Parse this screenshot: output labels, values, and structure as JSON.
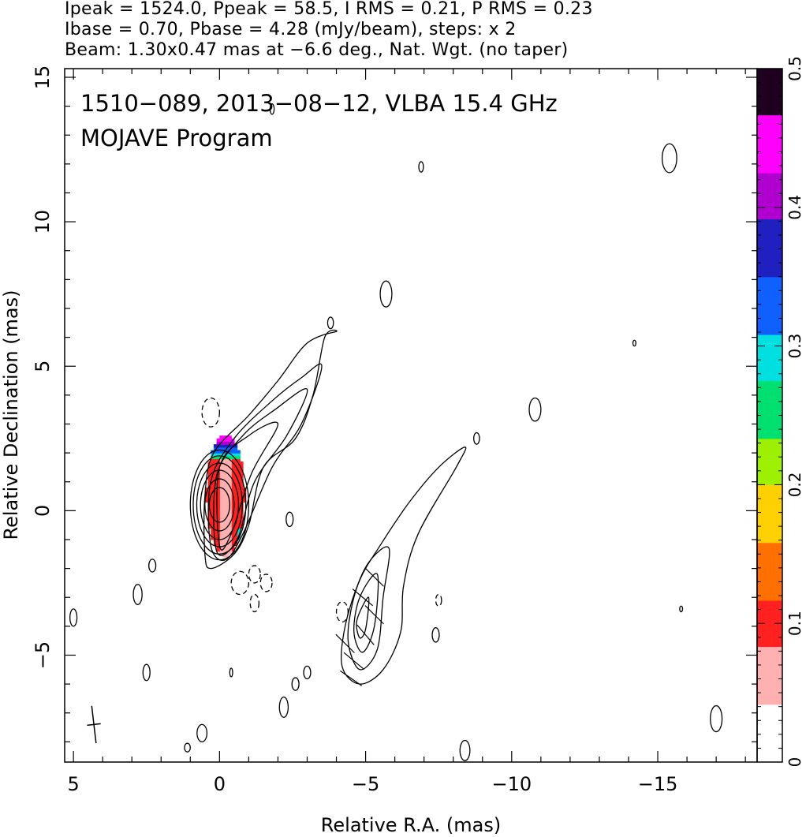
{
  "header": {
    "line1": "Ipeak = 1524.0, Ppeak = 58.5, I RMS = 0.21, P RMS = 0.23",
    "line2": "Ibase = 0.70, Pbase = 4.28 (mJy/beam), steps: x 2",
    "line3": "Beam: 1.30x0.47 mas at −6.6 deg., Nat. Wgt. (no taper)"
  },
  "chart_data": {
    "type": "heatmap",
    "title": "1510−089, 2013−08−12, VLBA 15.4 GHz",
    "subtitle": "MOJAVE Program",
    "xlabel": "Relative R.A. (mas)",
    "ylabel": "Relative Declination (mas)",
    "xlim": [
      5.3,
      -18.4
    ],
    "ylim": [
      -8.7,
      15.3
    ],
    "x_ticks": [
      5,
      0,
      -5,
      -10,
      -15
    ],
    "x_tick_labels": [
      "5",
      "0",
      "−5",
      "−10",
      "−15"
    ],
    "y_ticks": [
      15,
      10,
      5,
      0,
      -5
    ],
    "y_tick_labels": [
      "15",
      "10",
      "5",
      "0",
      "−5"
    ],
    "colorbar": {
      "min": 0,
      "max": 0.5,
      "ticks": [
        0,
        0.1,
        0.2,
        0.3,
        0.4,
        0.5
      ],
      "tick_labels": [
        "0",
        "0.1",
        "0.2",
        "0.3",
        "0.4",
        "0.5"
      ],
      "colors": [
        "#ffffff",
        "#ffb0b0",
        "#ff2020",
        "#ff7000",
        "#ffd000",
        "#9cf000",
        "#00e070",
        "#00e0e0",
        "#1060ff",
        "#2020c0",
        "#b000d0",
        "#ff00ff",
        "#200020"
      ]
    },
    "core_contours": {
      "center": [
        0.0,
        0.2
      ],
      "levels": [
        {
          "rx": 0.35,
          "ry": 0.6
        },
        {
          "rx": 0.5,
          "ry": 0.9
        },
        {
          "rx": 0.65,
          "ry": 1.2
        },
        {
          "rx": 0.78,
          "ry": 1.45
        },
        {
          "rx": 0.9,
          "ry": 1.7
        },
        {
          "rx": 1.0,
          "ry": 1.9
        }
      ]
    },
    "jet_contours": [
      [
        [
          -4.0,
          6.2
        ],
        [
          -3.6,
          6.0
        ],
        [
          -3.2,
          4.0
        ],
        [
          -2.6,
          2.5
        ],
        [
          -1.5,
          1.5
        ],
        [
          -1.0,
          -0.5
        ],
        [
          -0.5,
          -1.5
        ],
        [
          0.3,
          -2.0
        ],
        [
          0.5,
          -1.5
        ],
        [
          0.5,
          0.5
        ],
        [
          0.2,
          2.0
        ],
        [
          -1.0,
          3.3
        ],
        [
          -2.0,
          4.5
        ],
        [
          -3.0,
          5.8
        ]
      ],
      [
        [
          -3.5,
          5.0
        ],
        [
          -2.8,
          3.0
        ],
        [
          -1.8,
          1.5
        ],
        [
          -0.8,
          -0.8
        ],
        [
          -0.2,
          -1.7
        ],
        [
          0.3,
          -1.2
        ],
        [
          0.3,
          1.0
        ],
        [
          -0.5,
          2.5
        ],
        [
          -1.8,
          3.8
        ],
        [
          -2.8,
          4.6
        ]
      ],
      [
        [
          -3.0,
          4.2
        ],
        [
          -2.3,
          2.6
        ],
        [
          -1.2,
          1.0
        ],
        [
          -0.6,
          -1.0
        ],
        [
          0.1,
          -1.4
        ],
        [
          0.1,
          1.2
        ],
        [
          -0.8,
          2.6
        ],
        [
          -1.9,
          3.5
        ]
      ],
      [
        [
          -2.0,
          3.0
        ],
        [
          -1.1,
          1.3
        ],
        [
          -0.4,
          -0.8
        ],
        [
          0.0,
          -1.2
        ],
        [
          0.0,
          1.5
        ],
        [
          -1.0,
          2.6
        ]
      ]
    ],
    "secondary_contours": [
      [
        [
          -8.4,
          2.2
        ],
        [
          -8.1,
          1.5
        ],
        [
          -6.8,
          -0.8
        ],
        [
          -6.3,
          -2.6
        ],
        [
          -6.2,
          -4.2
        ],
        [
          -5.6,
          -5.5
        ],
        [
          -4.8,
          -6.0
        ],
        [
          -4.2,
          -5.4
        ],
        [
          -4.3,
          -4.0
        ],
        [
          -4.8,
          -2.4
        ],
        [
          -5.5,
          -1.2
        ],
        [
          -6.5,
          0.3
        ],
        [
          -7.5,
          1.5
        ]
      ],
      [
        [
          -5.8,
          -1.3
        ],
        [
          -5.6,
          -3.0
        ],
        [
          -5.4,
          -4.8
        ],
        [
          -4.8,
          -5.5
        ],
        [
          -4.4,
          -4.5
        ],
        [
          -4.6,
          -3.0
        ],
        [
          -5.1,
          -1.8
        ]
      ],
      [
        [
          -5.4,
          -2.2
        ],
        [
          -5.3,
          -4.0
        ],
        [
          -4.9,
          -4.9
        ],
        [
          -4.6,
          -4.2
        ],
        [
          -4.8,
          -3.0
        ]
      ],
      [
        [
          -5.1,
          -3.0
        ],
        [
          -5.0,
          -4.1
        ],
        [
          -4.8,
          -4.4
        ],
        [
          -4.7,
          -3.8
        ]
      ]
    ],
    "polarization_region": {
      "x_range": [
        -0.8,
        0.5
      ],
      "y_range": [
        -1.6,
        2.6
      ]
    },
    "noise_contours": [
      [
        -6.9,
        11.9,
        0.08,
        0.18
      ],
      [
        -15.4,
        12.2,
        0.25,
        0.5
      ],
      [
        -1.8,
        13.9,
        0.07,
        0.18
      ],
      [
        -5.7,
        7.5,
        0.2,
        0.45
      ],
      [
        -3.8,
        6.5,
        0.1,
        0.2
      ],
      [
        -10.8,
        3.5,
        0.2,
        0.4
      ],
      [
        -8.8,
        2.5,
        0.1,
        0.2
      ],
      [
        -2.4,
        -0.3,
        0.12,
        0.25
      ],
      [
        2.3,
        -1.9,
        0.12,
        0.22
      ],
      [
        2.8,
        -2.9,
        0.15,
        0.35
      ],
      [
        -7.4,
        -4.3,
        0.12,
        0.25
      ],
      [
        5.0,
        -3.7,
        0.12,
        0.3
      ],
      [
        2.5,
        -5.6,
        0.12,
        0.28
      ],
      [
        -2.6,
        -6.0,
        0.12,
        0.22
      ],
      [
        -3.0,
        -5.6,
        0.12,
        0.22
      ],
      [
        -2.2,
        -6.8,
        0.15,
        0.35
      ],
      [
        0.6,
        -7.7,
        0.17,
        0.3
      ],
      [
        1.1,
        -8.2,
        0.1,
        0.15
      ],
      [
        -8.4,
        -8.3,
        0.17,
        0.35
      ],
      [
        -17.0,
        -7.2,
        0.2,
        0.45
      ],
      [
        -0.4,
        -5.6,
        0.05,
        0.15
      ],
      [
        -14.2,
        5.8,
        0.05,
        0.1
      ],
      [
        -15.8,
        -3.4,
        0.05,
        0.1
      ]
    ],
    "negative_contours": [
      [
        0.3,
        3.4,
        0.3,
        0.5
      ],
      [
        -0.7,
        -2.5,
        0.3,
        0.4
      ],
      [
        -1.2,
        -2.2,
        0.2,
        0.3
      ],
      [
        -1.6,
        -2.5,
        0.2,
        0.3
      ],
      [
        -1.2,
        -3.2,
        0.15,
        0.3
      ],
      [
        -4.2,
        -3.5,
        0.2,
        0.35
      ],
      [
        -7.5,
        -3.1,
        0.1,
        0.2
      ]
    ],
    "vectors": [
      [
        -4.3,
        -4.6,
        45
      ],
      [
        -4.6,
        -5.2,
        40
      ],
      [
        -5.0,
        -4.3,
        50
      ],
      [
        -5.3,
        -3.6,
        45
      ],
      [
        -4.9,
        -3.0,
        40
      ],
      [
        -5.3,
        -2.3,
        45
      ],
      [
        -4.5,
        -5.8,
        35
      ]
    ],
    "beam": {
      "x": 4.3,
      "y": -7.4,
      "major": 1.3,
      "minor": 0.47,
      "pa": -6.6
    }
  }
}
